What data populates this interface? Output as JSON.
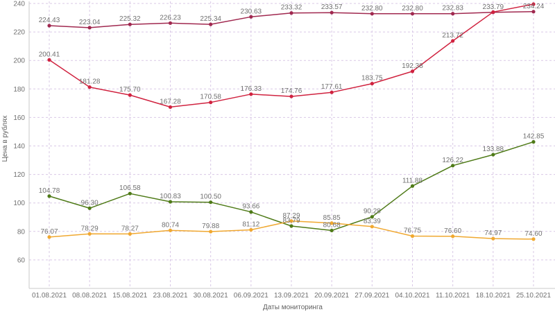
{
  "chart_data": {
    "type": "line",
    "title": "",
    "xlabel": "Даты мониторинга",
    "ylabel": "Цена в рублях",
    "ylim": [
      40,
      240
    ],
    "yticks": [
      60,
      80,
      100,
      120,
      140,
      160,
      180,
      200,
      220,
      240
    ],
    "grid": true,
    "legend": "none",
    "categories": [
      "01.08.2021",
      "08.08.2021",
      "15.08.2021",
      "23.08.2021",
      "30.08.2021",
      "06.09.2021",
      "13.09.2021",
      "20.09.2021",
      "27.09.2021",
      "04.10.2021",
      "11.10.2021",
      "18.10.2021",
      "25.10.2021"
    ],
    "series": [
      {
        "name": "series-1",
        "color": "#a0284f",
        "values": [
          224.43,
          223.04,
          225.32,
          226.23,
          225.34,
          230.63,
          233.32,
          233.57,
          232.8,
          232.8,
          232.83,
          233.79,
          234.24
        ],
        "labels": [
          "224.43",
          "223.04",
          "225.32",
          "226.23",
          "225.34",
          "230.63",
          "233.32",
          "233.57",
          "232.80",
          "232.80",
          "232.83",
          "233.79",
          "234.24"
        ]
      },
      {
        "name": "series-2",
        "color": "#d0223f",
        "values": [
          200.41,
          181.28,
          175.7,
          167.28,
          170.58,
          176.33,
          174.76,
          177.61,
          183.75,
          192.38,
          213.72,
          234.0,
          239.5
        ],
        "labels": [
          "200.41",
          "181.28",
          "175.70",
          "167.28",
          "170.58",
          "176.33",
          "174.76",
          "177.61",
          "183.75",
          "192.38",
          "213.72",
          "",
          ""
        ]
      },
      {
        "name": "series-3",
        "color": "#4e7a17",
        "values": [
          104.78,
          96.3,
          106.58,
          100.83,
          100.5,
          93.66,
          83.79,
          80.68,
          90.28,
          111.88,
          126.22,
          133.88,
          142.85
        ],
        "labels": [
          "104.78",
          "96.30",
          "106.58",
          "100.83",
          "100.50",
          "93.66",
          "83.79",
          "80.68",
          "90.28",
          "111.88",
          "126.22",
          "133.88",
          "142.85"
        ]
      },
      {
        "name": "series-4",
        "color": "#f0a830",
        "values": [
          76.07,
          78.29,
          78.27,
          80.74,
          79.88,
          81.12,
          87.29,
          85.85,
          83.39,
          76.75,
          76.6,
          74.97,
          74.6
        ],
        "labels": [
          "76.07",
          "78.29",
          "78.27",
          "80.74",
          "79.88",
          "81.12",
          "87.29",
          "85.85",
          "83.39",
          "76.75",
          "76.60",
          "74.97",
          "74.60"
        ]
      }
    ]
  }
}
